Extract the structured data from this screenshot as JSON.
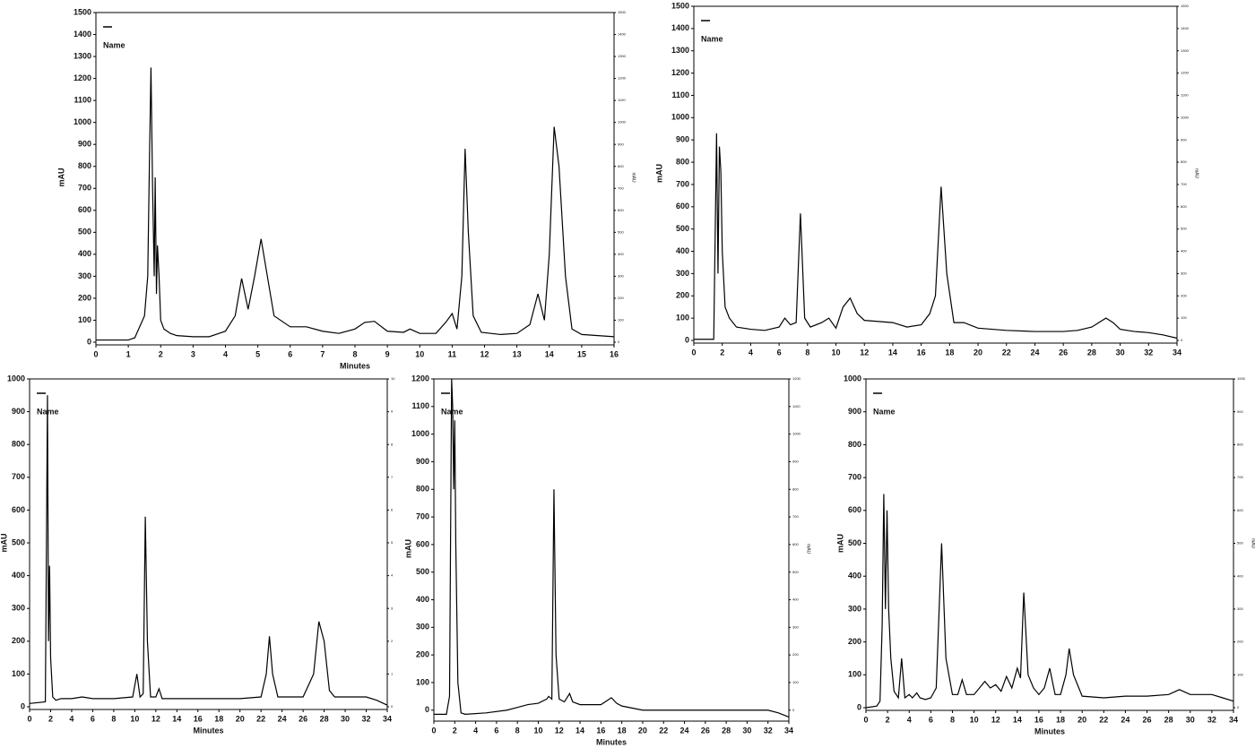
{
  "chart_data": [
    {
      "type": "line",
      "ylabel": "mAU",
      "xlabel": "Minutes",
      "y2label": "mAU",
      "legend_title": "Name",
      "legend": "upper left",
      "xlim": [
        0,
        16
      ],
      "xticks": [
        0,
        1,
        2,
        3,
        4,
        5,
        6,
        7,
        8,
        9,
        10,
        11,
        12,
        13,
        14,
        15,
        16
      ],
      "ylim": [
        0,
        1500
      ],
      "yticks": [
        0,
        100,
        200,
        300,
        400,
        500,
        600,
        700,
        800,
        900,
        1000,
        1100,
        1200,
        1300,
        1400,
        1500
      ],
      "y2lim": [
        0,
        1500
      ],
      "y2ticks": [
        0,
        100,
        200,
        300,
        400,
        500,
        600,
        700,
        800,
        900,
        1000,
        1100,
        1200,
        1300,
        1400,
        1500
      ],
      "x": [
        0,
        1,
        1.1,
        1.2,
        1.5,
        1.6,
        1.65,
        1.7,
        1.75,
        1.8,
        1.83,
        1.87,
        1.9,
        1.95,
        2.0,
        2.1,
        2.3,
        2.5,
        3,
        3.5,
        3.8,
        4,
        4.3,
        4.5,
        4.7,
        4.9,
        5.1,
        5.5,
        6,
        6.5,
        7,
        7.5,
        8,
        8.3,
        8.6,
        9,
        9.5,
        9.7,
        10,
        10.5,
        10.8,
        11,
        11.15,
        11.3,
        11.4,
        11.5,
        11.65,
        11.9,
        12.5,
        13,
        13.4,
        13.65,
        13.85,
        14,
        14.15,
        14.3,
        14.5,
        14.7,
        15,
        15.5,
        16
      ],
      "series": [
        {
          "name": "",
          "color": "#000000",
          "values": [
            10,
            10,
            15,
            20,
            120,
            300,
            800,
            1250,
            700,
            300,
            750,
            220,
            440,
            300,
            100,
            60,
            40,
            30,
            25,
            25,
            40,
            50,
            120,
            290,
            150,
            300,
            470,
            120,
            70,
            70,
            50,
            40,
            60,
            90,
            95,
            50,
            45,
            60,
            40,
            40,
            90,
            130,
            60,
            300,
            880,
            500,
            120,
            45,
            35,
            40,
            80,
            220,
            100,
            400,
            980,
            800,
            300,
            60,
            35,
            30,
            25
          ]
        }
      ]
    },
    {
      "type": "line",
      "ylabel": "mAU",
      "y2label": "mAU",
      "legend_title": "Name",
      "legend": "upper left",
      "xlim": [
        0,
        34
      ],
      "xticks": [
        0,
        2,
        4,
        6,
        8,
        10,
        12,
        14,
        16,
        18,
        20,
        22,
        24,
        26,
        28,
        30,
        32,
        34
      ],
      "ylim": [
        0,
        1500
      ],
      "yticks": [
        0,
        100,
        200,
        300,
        400,
        500,
        600,
        700,
        800,
        900,
        1000,
        1100,
        1200,
        1300,
        1400,
        1500
      ],
      "y2lim": [
        0,
        1500
      ],
      "y2ticks": [
        0,
        100,
        200,
        300,
        400,
        500,
        600,
        700,
        800,
        900,
        1000,
        1100,
        1200,
        1300,
        1400,
        1500
      ],
      "x": [
        0,
        1.4,
        1.6,
        1.7,
        1.8,
        1.9,
        2,
        2.2,
        2.5,
        3,
        4,
        5,
        6,
        6.4,
        6.8,
        7.2,
        7.5,
        7.8,
        8.2,
        9,
        9.5,
        10,
        10.5,
        11,
        11.5,
        12,
        13,
        14,
        15,
        16,
        16.6,
        17,
        17.4,
        17.8,
        18.3,
        19,
        20,
        22,
        24,
        26,
        27,
        28,
        29,
        29.5,
        30,
        31,
        32,
        33,
        34
      ],
      "series": [
        {
          "name": "",
          "color": "#000000",
          "values": [
            5,
            5,
            930,
            300,
            870,
            760,
            400,
            150,
            100,
            60,
            50,
            45,
            60,
            100,
            70,
            80,
            570,
            100,
            60,
            80,
            100,
            55,
            150,
            190,
            120,
            90,
            85,
            80,
            60,
            70,
            120,
            200,
            690,
            300,
            80,
            80,
            55,
            45,
            40,
            40,
            45,
            60,
            100,
            80,
            50,
            40,
            35,
            25,
            10
          ]
        }
      ]
    },
    {
      "type": "line",
      "ylabel": "mAU",
      "xlabel": "Minutes",
      "legend_title": "Name",
      "legend": "upper left",
      "xlim": [
        0,
        34
      ],
      "xticks": [
        0,
        2,
        4,
        6,
        8,
        10,
        12,
        14,
        16,
        18,
        20,
        22,
        24,
        26,
        28,
        30,
        32,
        34
      ],
      "ylim": [
        0,
        1000
      ],
      "yticks": [
        0,
        100,
        200,
        300,
        400,
        500,
        600,
        700,
        800,
        900,
        1000
      ],
      "y2lim": [
        0,
        10
      ],
      "y2ticks": [
        0,
        1,
        2,
        3,
        4,
        5,
        6,
        7,
        8,
        9,
        10
      ],
      "x": [
        0,
        1.5,
        1.7,
        1.8,
        1.9,
        2.0,
        2.2,
        2.5,
        3,
        4,
        5,
        6,
        8,
        9.8,
        10.2,
        10.5,
        10.8,
        11,
        11.2,
        11.5,
        12,
        12.3,
        12.6,
        14,
        16,
        18,
        20,
        22,
        22.5,
        22.8,
        23.1,
        23.6,
        24,
        26,
        27,
        27.5,
        28,
        28.5,
        29,
        30,
        32,
        33,
        34
      ],
      "series": [
        {
          "name": "",
          "color": "#000000",
          "values": [
            10,
            15,
            950,
            200,
            430,
            150,
            30,
            20,
            25,
            25,
            30,
            25,
            25,
            30,
            100,
            30,
            40,
            580,
            200,
            30,
            30,
            55,
            25,
            25,
            25,
            25,
            25,
            30,
            100,
            215,
            100,
            30,
            30,
            30,
            100,
            260,
            200,
            50,
            30,
            30,
            30,
            20,
            5
          ]
        }
      ]
    },
    {
      "type": "line",
      "ylabel": "mAU",
      "xlabel": "Minutes",
      "y2label": "mAU",
      "legend_title": "Name",
      "legend": "upper left",
      "xlim": [
        0,
        34
      ],
      "xticks": [
        0,
        2,
        4,
        6,
        8,
        10,
        12,
        14,
        16,
        18,
        20,
        22,
        24,
        26,
        28,
        30,
        32,
        34
      ],
      "ylim": [
        -30,
        1200
      ],
      "yticks": [
        0,
        100,
        200,
        300,
        400,
        500,
        600,
        700,
        800,
        900,
        1000,
        1100,
        1200
      ],
      "y2lim": [
        -30,
        1200
      ],
      "y2ticks": [
        0,
        100,
        200,
        300,
        400,
        500,
        600,
        700,
        800,
        900,
        1000,
        1100,
        1200
      ],
      "x": [
        0,
        1.2,
        1.5,
        1.7,
        1.8,
        1.9,
        2.0,
        2.1,
        2.3,
        2.6,
        3,
        5,
        7,
        8,
        9,
        10,
        10.8,
        11,
        11.3,
        11.5,
        11.7,
        12,
        12.5,
        13,
        13.3,
        14,
        15,
        16,
        17,
        17.5,
        18,
        20,
        25,
        30,
        32,
        33,
        34
      ],
      "series": [
        {
          "name": "",
          "color": "#000000",
          "values": [
            -15,
            -15,
            50,
            1200,
            1100,
            800,
            1050,
            600,
            100,
            -10,
            -15,
            -10,
            0,
            10,
            20,
            25,
            40,
            50,
            40,
            800,
            200,
            40,
            30,
            60,
            30,
            20,
            20,
            20,
            45,
            25,
            15,
            0,
            0,
            0,
            0,
            -10,
            -25
          ]
        }
      ]
    },
    {
      "type": "line",
      "ylabel": "mAU",
      "xlabel": "Minutes",
      "y2label": "mAU",
      "legend_title": "Name",
      "legend": "upper left",
      "xlim": [
        0,
        34
      ],
      "xticks": [
        0,
        2,
        4,
        6,
        8,
        10,
        12,
        14,
        16,
        18,
        20,
        22,
        24,
        26,
        28,
        30,
        32,
        34
      ],
      "ylim": [
        0,
        1000
      ],
      "yticks": [
        0,
        100,
        200,
        300,
        400,
        500,
        600,
        700,
        800,
        900,
        1000
      ],
      "y2lim": [
        0,
        1000
      ],
      "y2ticks": [
        0,
        100,
        200,
        300,
        400,
        500,
        600,
        700,
        800,
        900,
        1000
      ],
      "x": [
        0,
        1,
        1.3,
        1.5,
        1.65,
        1.8,
        1.95,
        2.1,
        2.3,
        2.6,
        3,
        3.3,
        3.6,
        4,
        4.3,
        4.7,
        5,
        5.5,
        6,
        6.5,
        7,
        7.4,
        8,
        8.5,
        8.9,
        9.3,
        10,
        11,
        11.5,
        12,
        12.5,
        13,
        13.5,
        14,
        14.3,
        14.6,
        15,
        15.5,
        16,
        16.5,
        17,
        17.5,
        18,
        18.5,
        18.8,
        19.2,
        20,
        22,
        24,
        26,
        28,
        29,
        30,
        32,
        33,
        34
      ],
      "series": [
        {
          "name": "",
          "color": "#000000",
          "values": [
            0,
            5,
            20,
            250,
            650,
            300,
            600,
            300,
            150,
            50,
            30,
            150,
            30,
            40,
            30,
            45,
            30,
            25,
            30,
            60,
            500,
            150,
            40,
            40,
            85,
            40,
            40,
            80,
            60,
            70,
            50,
            95,
            60,
            120,
            90,
            350,
            100,
            60,
            40,
            60,
            120,
            40,
            40,
            100,
            180,
            100,
            35,
            30,
            35,
            35,
            40,
            55,
            40,
            40,
            30,
            20
          ]
        }
      ]
    }
  ]
}
